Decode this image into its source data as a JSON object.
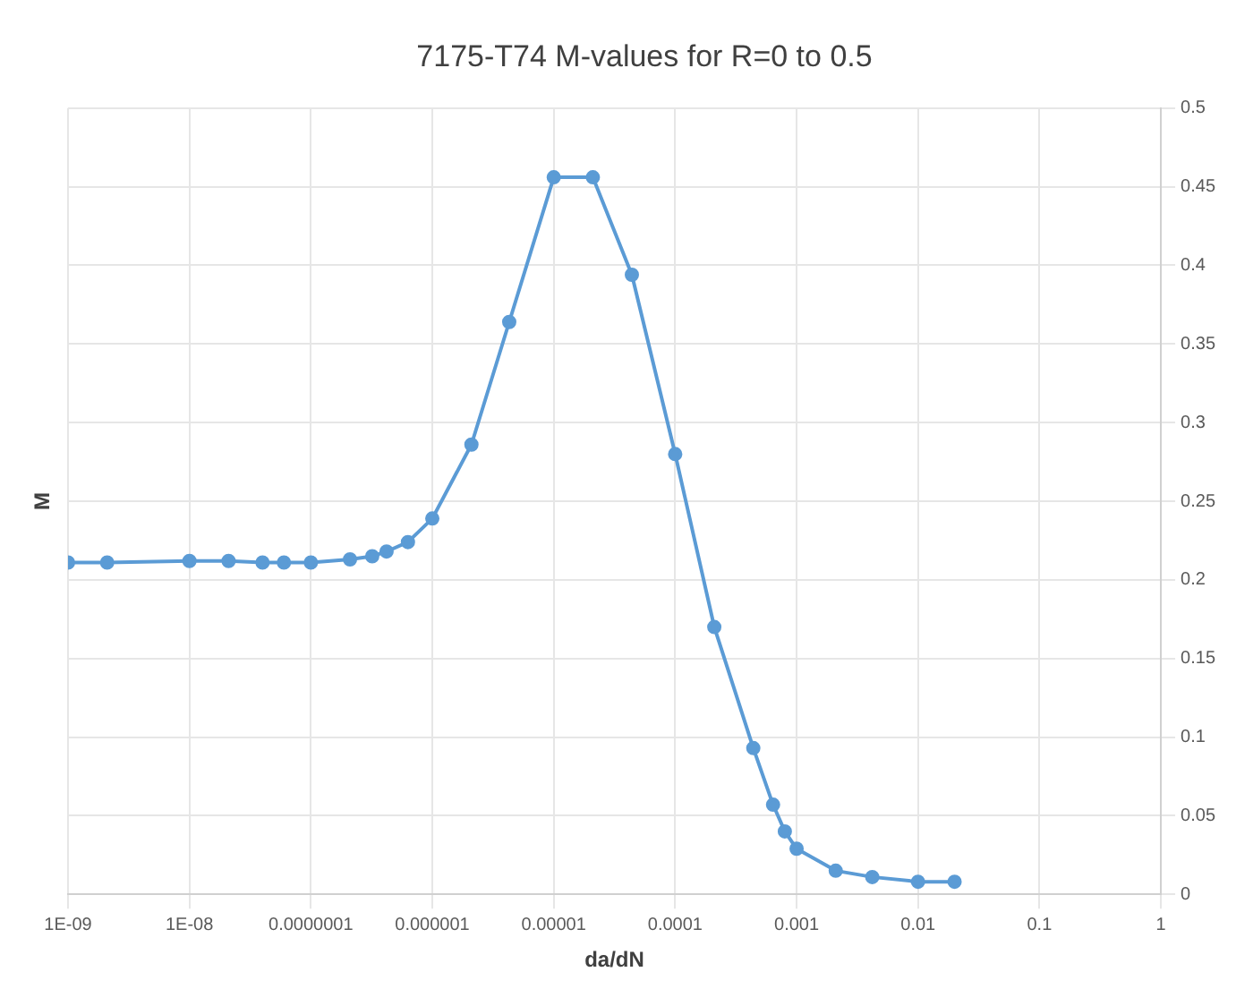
{
  "chart_data": {
    "type": "line",
    "title": "7175-T74 M-values for R=0 to 0.5",
    "xlabel": "da/dN",
    "ylabel": "M",
    "log": "x",
    "grid": true,
    "marker": "circle",
    "line_style": "solid",
    "xlim": [
      1e-09,
      1
    ],
    "ylim": [
      0,
      0.5
    ],
    "xticks": [
      {
        "value": 1e-09,
        "label": "1E-09"
      },
      {
        "value": 1e-08,
        "label": "1E-08"
      },
      {
        "value": 1e-07,
        "label": "0.0000001"
      },
      {
        "value": 1e-06,
        "label": "0.000001"
      },
      {
        "value": 1e-05,
        "label": "0.00001"
      },
      {
        "value": 0.0001,
        "label": "0.0001"
      },
      {
        "value": 0.001,
        "label": "0.001"
      },
      {
        "value": 0.01,
        "label": "0.01"
      },
      {
        "value": 0.1,
        "label": "0.1"
      },
      {
        "value": 1,
        "label": "1"
      }
    ],
    "yticks": [
      0,
      0.05,
      0.1,
      0.15,
      0.2,
      0.25,
      0.3,
      0.35,
      0.4,
      0.45,
      0.5
    ],
    "series": [
      {
        "color": "#5b9bd5",
        "x": [
          1e-09,
          2.1e-09,
          1e-08,
          2.1e-08,
          4e-08,
          6e-08,
          1e-07,
          2.1e-07,
          3.2e-07,
          4.2e-07,
          6.3e-07,
          1e-06,
          2.1e-06,
          4.3e-06,
          1e-05,
          2.1e-05,
          4.4e-05,
          0.0001,
          0.00021,
          0.00044,
          0.00064,
          0.0008,
          0.001,
          0.0021,
          0.0042,
          0.01,
          0.02
        ],
        "values": [
          0.211,
          0.211,
          0.212,
          0.212,
          0.211,
          0.211,
          0.211,
          0.213,
          0.215,
          0.218,
          0.224,
          0.239,
          0.286,
          0.364,
          0.456,
          0.456,
          0.394,
          0.28,
          0.17,
          0.093,
          0.057,
          0.04,
          0.029,
          0.015,
          0.011,
          0.008,
          0.008
        ]
      }
    ]
  }
}
